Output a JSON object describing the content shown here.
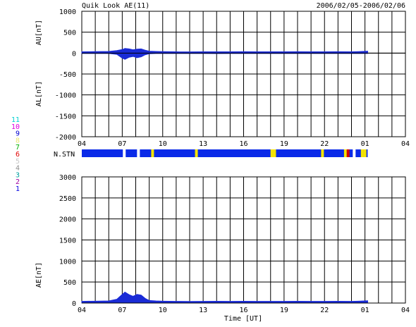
{
  "header": {
    "title": "Quik Look AE(11)",
    "date_range": "2006/02/05-2006/02/06"
  },
  "colors": {
    "background": "#ffffff",
    "trace": "#1a2bd6",
    "station_bar": "#0a2ae8",
    "gap_yellow": "#f5e400",
    "gap_red": "#d40000",
    "grid": "#000000"
  },
  "station_legend": [
    {
      "label": "11",
      "color": "#00d0d0"
    },
    {
      "label": "10",
      "color": "#e000e0"
    },
    {
      "label": "9",
      "color": "#0000d0"
    },
    {
      "label": "8",
      "color": "#e8e870"
    },
    {
      "label": "7",
      "color": "#00b000"
    },
    {
      "label": "6",
      "color": "#e00000"
    },
    {
      "label": "5",
      "color": "#c8c8c8"
    },
    {
      "label": "4",
      "color": "#909090"
    },
    {
      "label": "3",
      "color": "#00a0a0"
    },
    {
      "label": "2",
      "color": "#a000a0"
    },
    {
      "label": "1",
      "color": "#0000e0"
    }
  ],
  "station_row_label": "N.STN",
  "chart_data": [
    {
      "type": "area",
      "xlabel": "",
      "ylabel_top": "AU[nT]",
      "ylabel_bottom": "AL[nT]",
      "xlim": [
        4,
        28
      ],
      "ylim": [
        -2000,
        1000
      ],
      "y_ticks": [
        "1000",
        "500",
        "0",
        "-500",
        "-1000",
        "-1500",
        "-2000"
      ],
      "x_ticks": [
        "04",
        "07",
        "10",
        "13",
        "16",
        "19",
        "22",
        "01",
        "04"
      ],
      "grid": true,
      "series": [
        {
          "name": "AU",
          "x": [
            4,
            5,
            6,
            6.6,
            7,
            7.2,
            7.5,
            7.8,
            8.1,
            8.4,
            8.7,
            9,
            9.5,
            10,
            11,
            12,
            13,
            14,
            15,
            16,
            17,
            18,
            19,
            20,
            21,
            22,
            23,
            24,
            24.5,
            25.2
          ],
          "values": [
            30,
            35,
            40,
            60,
            85,
            110,
            100,
            80,
            95,
            100,
            70,
            45,
            40,
            35,
            30,
            28,
            30,
            30,
            30,
            32,
            30,
            30,
            30,
            32,
            30,
            30,
            32,
            30,
            35,
            45
          ]
        },
        {
          "name": "AL",
          "x": [
            4,
            5,
            6,
            6.6,
            7,
            7.2,
            7.5,
            7.8,
            8.1,
            8.4,
            8.7,
            9,
            9.5,
            10,
            11,
            12,
            13,
            14,
            15,
            16,
            17,
            18,
            19,
            20,
            21,
            22,
            23,
            24,
            24.5,
            25.2
          ],
          "values": [
            -10,
            -10,
            -10,
            -30,
            -120,
            -150,
            -100,
            -80,
            -110,
            -90,
            -40,
            -15,
            -10,
            -10,
            -10,
            -10,
            -10,
            -12,
            -10,
            -10,
            -10,
            -10,
            -10,
            -10,
            -10,
            -10,
            -10,
            -10,
            -10,
            -10
          ]
        }
      ]
    },
    {
      "type": "area",
      "xlabel": "Time [UT]",
      "ylabel": "AE[nT]",
      "xlim": [
        4,
        28
      ],
      "ylim": [
        0,
        3000
      ],
      "y_ticks": [
        "3000",
        "2500",
        "2000",
        "1500",
        "1000",
        "500",
        "0"
      ],
      "x_ticks": [
        "04",
        "07",
        "10",
        "13",
        "16",
        "19",
        "22",
        "01",
        "04"
      ],
      "grid": true,
      "series": [
        {
          "name": "AE",
          "x": [
            4,
            5,
            6,
            6.6,
            7,
            7.2,
            7.5,
            7.8,
            8.1,
            8.4,
            8.7,
            9,
            9.5,
            10,
            11,
            12,
            13,
            14,
            15,
            16,
            17,
            18,
            19,
            20,
            21,
            22,
            23,
            24,
            24.5,
            25.2
          ],
          "values": [
            40,
            45,
            50,
            90,
            205,
            260,
            200,
            160,
            205,
            190,
            110,
            60,
            50,
            45,
            40,
            38,
            40,
            42,
            40,
            42,
            40,
            40,
            40,
            42,
            40,
            40,
            42,
            40,
            45,
            55
          ]
        }
      ]
    }
  ],
  "station_bar": {
    "x_start": 4,
    "x_end": 25.2,
    "gaps": [
      {
        "x": 7.15,
        "color": "white"
      },
      {
        "x": 8.2,
        "color": "white"
      },
      {
        "x": 9.25,
        "color": "yellow"
      },
      {
        "x": 12.5,
        "color": "yellow"
      },
      {
        "x": 18.1,
        "color": "yellow"
      },
      {
        "x": 18.3,
        "color": "yellow"
      },
      {
        "x": 21.85,
        "color": "yellow"
      },
      {
        "x": 23.55,
        "color": "yellow"
      },
      {
        "x": 23.75,
        "color": "red"
      },
      {
        "x": 24.2,
        "color": "white"
      },
      {
        "x": 24.8,
        "color": "yellow"
      },
      {
        "x": 25.0,
        "color": "yellow"
      }
    ]
  }
}
